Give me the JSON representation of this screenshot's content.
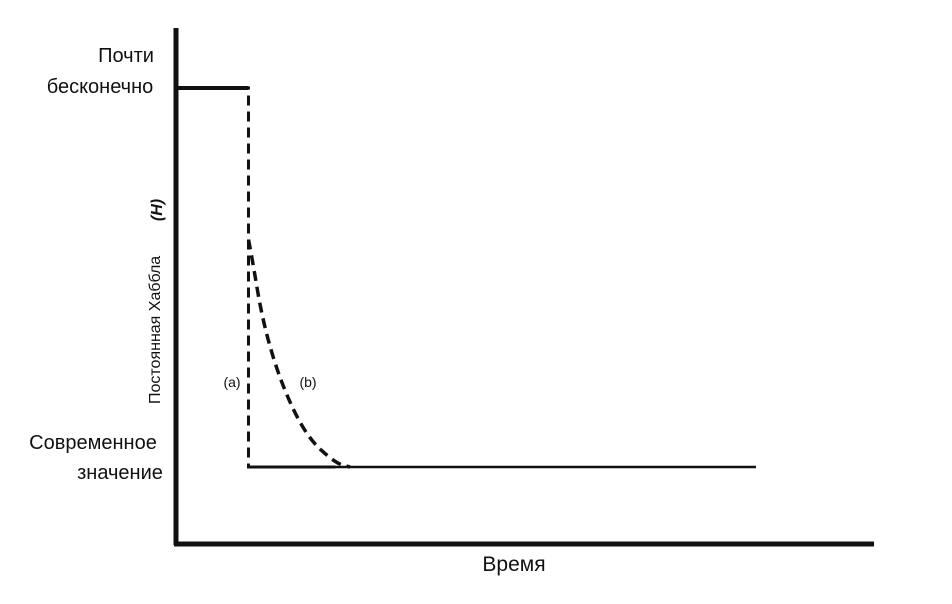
{
  "chart_data": {
    "type": "line",
    "title": "",
    "xlabel": "Время",
    "ylabel": "Постоянная Хаббла",
    "ylabel_symbol": "(H)",
    "y_levels": [
      {
        "lines": [
          "Почти",
          "бесконечно"
        ]
      },
      {
        "lines": [
          "Современное",
          "значение"
        ]
      }
    ],
    "grid": false,
    "legend": "none",
    "series": [
      {
        "name": "(a)",
        "style": "dashed",
        "x": [
          0.0,
          1.0,
          1.0,
          2.2
        ],
        "y": [
          1.0,
          1.0,
          0.0,
          0.0
        ]
      },
      {
        "name": "(b)",
        "style": "dashed",
        "x": [
          1.0,
          1.05,
          1.2,
          1.45,
          1.8,
          2.2,
          2.4
        ],
        "y": [
          0.6,
          0.55,
          0.38,
          0.22,
          0.08,
          0.01,
          0.0
        ]
      },
      {
        "style": "solid",
        "x": [
          2.2,
          8.0
        ],
        "y": [
          0.0,
          0.0
        ]
      }
    ]
  }
}
